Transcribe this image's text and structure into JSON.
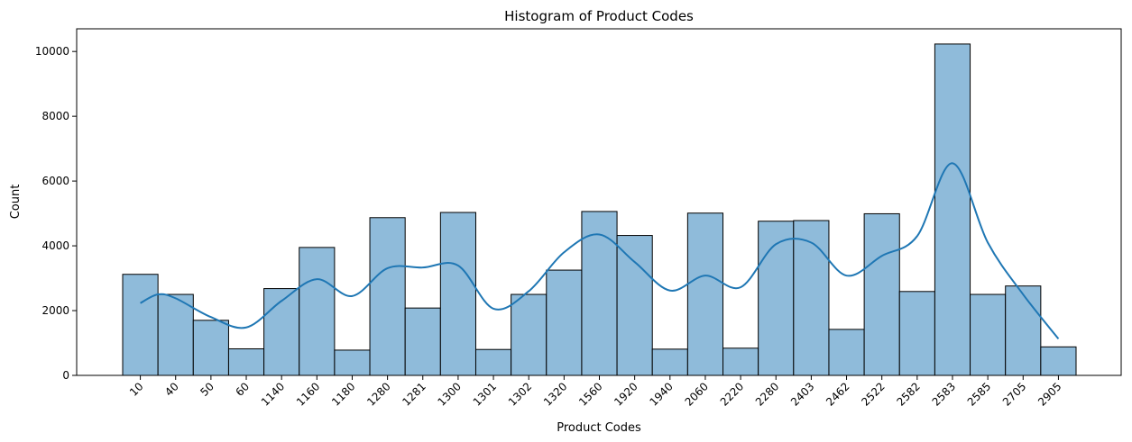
{
  "chart_data": {
    "type": "bar",
    "title": "Histogram of Product Codes",
    "xlabel": "Product Codes",
    "ylabel": "Count",
    "ylim": [
      0,
      10700
    ],
    "yticks": [
      0,
      2000,
      4000,
      6000,
      8000,
      10000
    ],
    "categories": [
      "10",
      "40",
      "50",
      "60",
      "1140",
      "1160",
      "1180",
      "1280",
      "1281",
      "1300",
      "1301",
      "1302",
      "1320",
      "1560",
      "1920",
      "1940",
      "2060",
      "2220",
      "2280",
      "2403",
      "2462",
      "2522",
      "2582",
      "2583",
      "2585",
      "2705",
      "2905"
    ],
    "values": [
      3120,
      2500,
      1700,
      820,
      2680,
      3950,
      780,
      4870,
      2080,
      5030,
      800,
      2500,
      3250,
      5060,
      4320,
      810,
      5010,
      840,
      4760,
      4780,
      1420,
      4990,
      2590,
      10230,
      2500,
      2760,
      880
    ],
    "kde": {
      "x_index": [
        0,
        0.5,
        1,
        2,
        3,
        4,
        5,
        6,
        7,
        8,
        9,
        10,
        11,
        12,
        13,
        14,
        15,
        16,
        17,
        18,
        19,
        20,
        21,
        22,
        23,
        24,
        25,
        26
      ],
      "y": [
        2230,
        2500,
        2380,
        1800,
        1480,
        2300,
        2970,
        2450,
        3310,
        3330,
        3390,
        2060,
        2600,
        3800,
        4350,
        3500,
        2620,
        3080,
        2720,
        4050,
        4100,
        3080,
        3690,
        4300,
        6550,
        4100,
        2500,
        1130
      ]
    },
    "grid": false,
    "legend": "none",
    "colors": {
      "bar_fill": "#8fbbda",
      "bar_edge": "#000000",
      "kde_line": "#1f77b4"
    }
  }
}
